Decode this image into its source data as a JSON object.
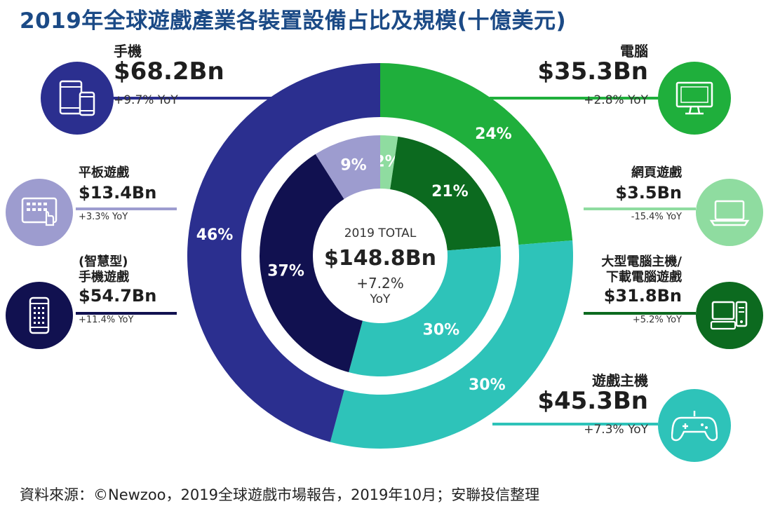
{
  "title": "2019年全球遊戲產業各裝置設備占比及規模(十億美元)",
  "center": {
    "label": "2019 TOTAL",
    "value": "$148.8Bn",
    "growth": "+7.2%",
    "growth_unit": "YoY"
  },
  "source": "資料來源：©Newzoo，2019全球遊戲市場報告，2019年10月；安聯投信整理",
  "outer_labels": [
    "24%",
    "30%",
    "46%"
  ],
  "inner_labels": [
    "2%",
    "21%",
    "30%",
    "37%",
    "9%"
  ],
  "labels": {
    "mobile": {
      "name": "手機",
      "value": "$68.2Bn",
      "yoy": "+9.7% YoY"
    },
    "tablet": {
      "name": "平板遊戲",
      "value": "$13.4Bn",
      "yoy": "+3.3% YoY"
    },
    "smartphone": {
      "name1": "(智慧型)",
      "name2": "手機遊戲",
      "value": "$54.7Bn",
      "yoy": "+11.4% YoY"
    },
    "pc": {
      "name": "電腦",
      "value": "$35.3Bn",
      "yoy": "+2.8% YoY"
    },
    "browser": {
      "name": "網頁遊戲",
      "value": "$3.5Bn",
      "yoy": "-15.4% YoY"
    },
    "boxed": {
      "name1": "大型電腦主機/",
      "name2": "下載電腦遊戲",
      "value": "$31.8Bn",
      "yoy": "+5.2% YoY"
    },
    "console": {
      "name": "遊戲主機",
      "value": "$45.3Bn",
      "yoy": "+7.3% YoY"
    }
  },
  "colors": {
    "mobile": "#2b2f8f",
    "smartphone": "#111150",
    "tablet": "#9d9ccf",
    "pc": "#1faf3c",
    "browser": "#8fdca0",
    "boxed": "#0c6a1f",
    "console": "#2ec3b9"
  },
  "chart_data": [
    {
      "type": "pie",
      "name": "outer ring",
      "categories": [
        "電腦",
        "遊戲主機",
        "手機"
      ],
      "values": [
        35.3,
        45.3,
        68.2
      ],
      "percent_labels": [
        "24%",
        "30%",
        "46%"
      ],
      "unit": "十億美元"
    },
    {
      "type": "pie",
      "name": "inner ring",
      "categories": [
        "網頁遊戲",
        "大型電腦主機/下載電腦遊戲",
        "遊戲主機",
        "(智慧型)手機遊戲",
        "平板遊戲"
      ],
      "values": [
        3.5,
        31.8,
        45.3,
        54.7,
        13.4
      ],
      "percent_labels": [
        "2%",
        "21%",
        "30%",
        "37%",
        "9%"
      ],
      "unit": "十億美元"
    }
  ]
}
